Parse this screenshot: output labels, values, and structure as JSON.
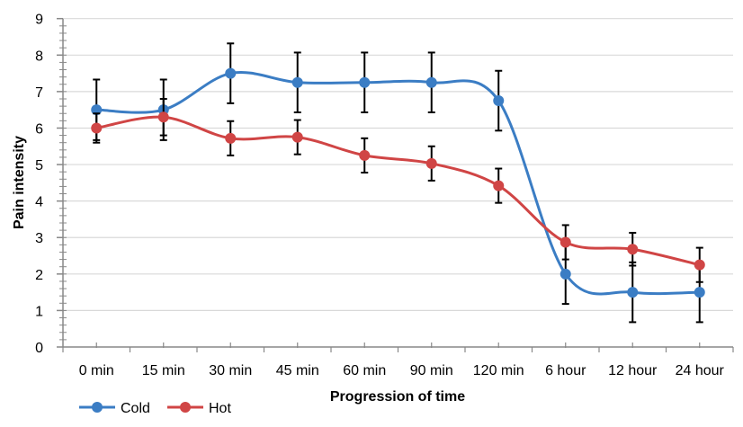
{
  "chart_data": {
    "type": "line",
    "title": "",
    "xlabel": "Progression of time",
    "ylabel": "Pain intensity",
    "ylim": [
      0,
      9
    ],
    "yticks": [
      0,
      1,
      2,
      3,
      4,
      5,
      6,
      7,
      8,
      9
    ],
    "grid": true,
    "legend_position": "bottom-left",
    "categories": [
      "0 min",
      "15 min",
      "30 min",
      "45 min",
      "60 min",
      "90 min",
      "120 min",
      "6 hour",
      "12 hour",
      "24 hour"
    ],
    "series": [
      {
        "name": "Cold",
        "color": "#3b7dc4",
        "values": [
          6.5,
          6.5,
          7.5,
          7.25,
          7.25,
          7.25,
          6.75,
          2.0,
          1.5,
          1.5
        ],
        "error": [
          0.83,
          0.83,
          0.82,
          0.82,
          0.82,
          0.82,
          0.82,
          0.82,
          0.82,
          0.82
        ]
      },
      {
        "name": "Hot",
        "color": "#d04545",
        "values": [
          6.0,
          6.3,
          5.72,
          5.75,
          5.25,
          5.03,
          4.42,
          2.87,
          2.68,
          2.25
        ],
        "error": [
          0.4,
          0.5,
          0.47,
          0.47,
          0.47,
          0.47,
          0.47,
          0.47,
          0.45,
          0.47
        ]
      }
    ]
  }
}
